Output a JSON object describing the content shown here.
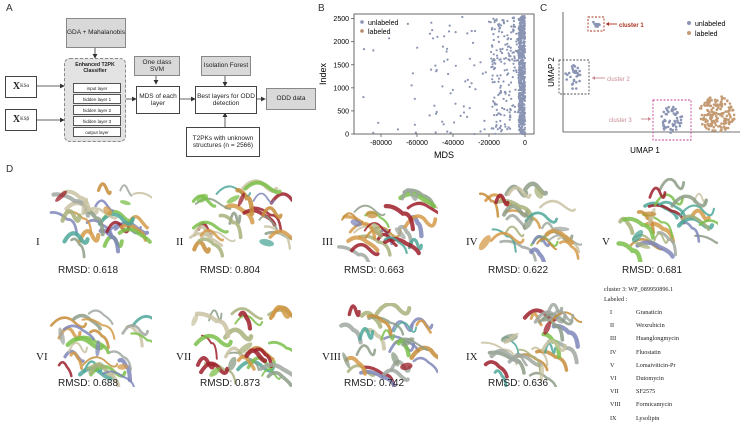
{
  "panel_labels": {
    "a": "A",
    "b": "B",
    "c": "C",
    "d": "D"
  },
  "panelA": {
    "input1": "X",
    "input1_sub": "KSα",
    "input2": "X",
    "input2_sub": "KSβ",
    "gda": "GDA + Mahalanobis",
    "classifier_title": "Enhanced T2PK Classifier",
    "layers": [
      "input layer",
      "hidden layer 1",
      "hidden layer 2",
      "hidden layer 3",
      "output layer"
    ],
    "svm": "One class SVM",
    "mds": "MDS of each layer",
    "iforest": "Isolation Forest",
    "best": "Best layers for ODD detection",
    "unknown": "T2PKs with unknown structures (n = 2566)",
    "odd": "ODD data"
  },
  "panelB": {
    "chart_data": {
      "type": "scatter",
      "xlabel": "MDS",
      "ylabel": "Index",
      "xlim": [
        -95000,
        5000
      ],
      "ylim": [
        0,
        2600
      ],
      "xticks": [
        "-80000",
        "-60000",
        "-40000",
        "-20000",
        "0"
      ],
      "yticks": [
        "0",
        "500",
        "1000",
        "1500",
        "2000",
        "2500"
      ],
      "series": [
        {
          "name": "unlabeled",
          "color": "#8a94b3"
        },
        {
          "name": "labeled",
          "color": "#b58a6a"
        }
      ],
      "legend_position": "top-left"
    }
  },
  "panelC": {
    "chart_data": {
      "type": "scatter",
      "xlabel": "UMAP 1",
      "ylabel": "UMAP 2",
      "series": [
        {
          "name": "unlabeled",
          "color": "#8a94b3"
        },
        {
          "name": "labeled",
          "color": "#c49a72"
        }
      ],
      "clusters": [
        {
          "label": "cluster 1",
          "color": "#a8321e"
        },
        {
          "label": "cluster 2",
          "color": "#c98a93"
        },
        {
          "label": "cluster 3",
          "color": "#c98a93"
        }
      ],
      "legend_position": "top-right"
    }
  },
  "panelD": {
    "structures": [
      {
        "roman": "I",
        "rmsd": "RMSD: 0.618"
      },
      {
        "roman": "II",
        "rmsd": "RMSD: 0.804"
      },
      {
        "roman": "III",
        "rmsd": "RMSD: 0.663"
      },
      {
        "roman": "IV",
        "rmsd": "RMSD: 0.622"
      },
      {
        "roman": "V",
        "rmsd": "RMSD: 0.681"
      },
      {
        "roman": "VI",
        "rmsd": "RMSD: 0.688"
      },
      {
        "roman": "VII",
        "rmsd": "RMSD: 0.873"
      },
      {
        "roman": "VIII",
        "rmsd": "RMSD: 0.742"
      },
      {
        "roman": "IX",
        "rmsd": "RMSD: 0.636"
      }
    ],
    "legend_title": "cluster 3: WP_089950896.1",
    "legend_sub": "Labeled :",
    "legend": [
      {
        "num": "I",
        "name": "Granaticin"
      },
      {
        "num": "II",
        "name": "Wexrubicin"
      },
      {
        "num": "III",
        "name": "Huanglongmycin"
      },
      {
        "num": "IV",
        "name": "Fluostatin"
      },
      {
        "num": "V",
        "name": "Lomaiviticin-Pr"
      },
      {
        "num": "VI",
        "name": "Dutomycin"
      },
      {
        "num": "VII",
        "name": "SF2575"
      },
      {
        "num": "VIII",
        "name": "Formicamycin"
      },
      {
        "num": "IX",
        "name": "Lysolipin"
      }
    ]
  }
}
